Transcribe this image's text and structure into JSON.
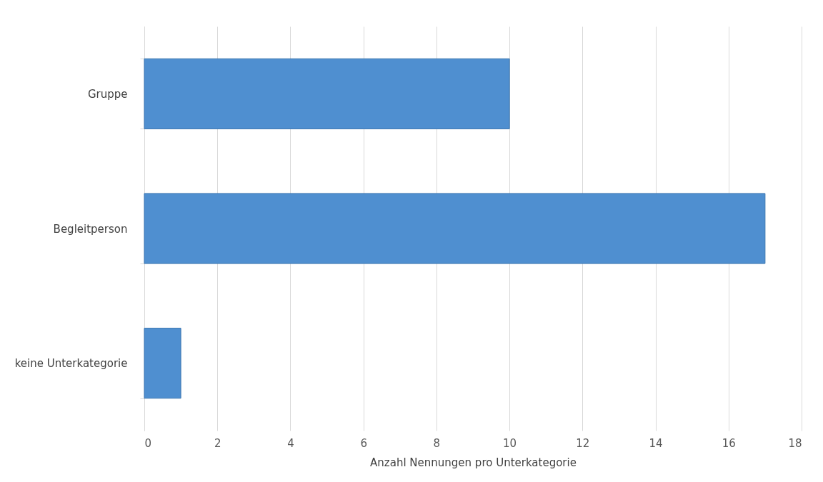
{
  "chart_data": {
    "type": "bar",
    "orientation": "horizontal",
    "categories": [
      "Gruppe",
      "Begleitperson",
      "keine Unterkategorie"
    ],
    "values": [
      10,
      17,
      1
    ],
    "color": "#4f8fd0",
    "xlabel": "Anzahl Nennungen pro Unterkategorie",
    "xlim": [
      0,
      18
    ],
    "xticks": [
      0,
      2,
      4,
      6,
      8,
      10,
      12,
      14,
      16,
      18
    ],
    "grid": "x"
  }
}
